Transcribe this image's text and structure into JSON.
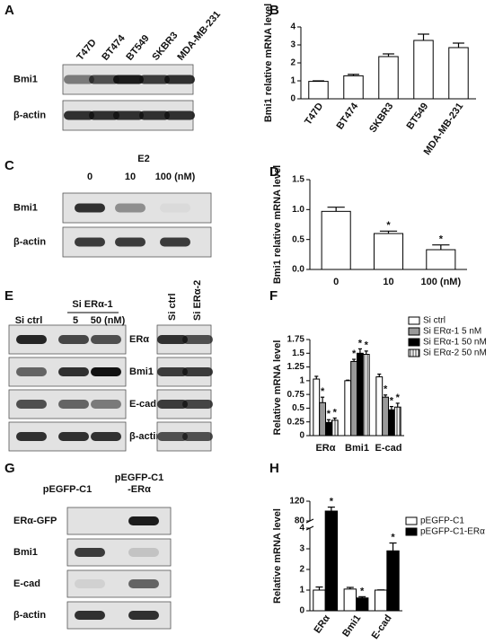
{
  "blots": [
    {
      "panel": "A",
      "lanes": [
        "T47D",
        "BT474",
        "BT549",
        "SKBR3",
        "MDA-MB-231"
      ],
      "rows": [
        "Bmi1",
        "β-actin"
      ]
    },
    {
      "panel": "C",
      "treatment": "E2",
      "lanes": [
        "0",
        "10",
        "100 (nM)"
      ],
      "rows": [
        "Bmi1",
        "β-actin"
      ]
    },
    {
      "panel": "E",
      "group": "Si ERα-1",
      "lanes": [
        "Si ctrl",
        "5",
        "50 (nM)"
      ],
      "lanes2": [
        "Si ctrl",
        "Si ERα-2"
      ],
      "rows": [
        "ERα",
        "Bmi1",
        "E-cad",
        "β-actin"
      ]
    },
    {
      "panel": "G",
      "lanes": [
        [
          "pEGFP-C1"
        ],
        [
          "pEGFP-C1",
          "-ERα"
        ]
      ],
      "rows": [
        "ERα-GFP",
        "Bmi1",
        "E-cad",
        "β-actin"
      ]
    }
  ],
  "chart_data": [
    {
      "type": "bar",
      "panel": "B",
      "y_label": "Bmi1 relative mRNA level",
      "categories": [
        "T47D",
        "BT474",
        "SKBR3",
        "BT549",
        "MDA-MB-231"
      ],
      "values": [
        0.97,
        1.28,
        2.35,
        3.25,
        2.85
      ],
      "errors": [
        0.03,
        0.08,
        0.15,
        0.35,
        0.25
      ],
      "color": "#ffffff",
      "ylim": [
        0,
        4
      ],
      "yticks": [
        0,
        1,
        2,
        3,
        4
      ]
    },
    {
      "type": "bar",
      "panel": "D",
      "y_label": "Bmi1 relative mRNA level",
      "categories": [
        "0",
        "10",
        "100 (nM)"
      ],
      "values": [
        0.97,
        0.6,
        0.33
      ],
      "errors": [
        0.07,
        0.04,
        0.08
      ],
      "stars": [
        null,
        "*",
        "*"
      ],
      "color": "#ffffff",
      "ylim": [
        0,
        1.5
      ],
      "yticks": [
        {
          "value": 0,
          "label": "0.0"
        },
        {
          "value": 0.5,
          "label": "0.5"
        },
        {
          "value": 1,
          "label": "1.0"
        },
        {
          "value": 1.5,
          "label": "1.5"
        }
      ]
    },
    {
      "type": "grouped-bar",
      "panel": "F",
      "y_label": "Relative mRNA level",
      "categories": [
        "ERα",
        "Bmi1",
        "E-cad"
      ],
      "series": [
        {
          "name": "Si ctrl",
          "color": "#ffffff",
          "values": [
            1.03,
            1.0,
            1.07
          ],
          "errors": [
            0.05,
            0.01,
            0.05
          ],
          "stars": [
            null,
            null,
            null
          ]
        },
        {
          "name": "Si ERα-1 5 nM",
          "color": "#999999",
          "values": [
            0.6,
            1.35,
            0.7
          ],
          "errors": [
            0.1,
            0.04,
            0.04
          ],
          "stars": [
            "*",
            "*",
            "*"
          ]
        },
        {
          "name": "Si ERα-1 50 nM",
          "color": "#000000",
          "values": [
            0.24,
            1.5,
            0.47
          ],
          "errors": [
            0.05,
            0.08,
            0.06
          ],
          "stars": [
            "*",
            "*",
            "*"
          ]
        },
        {
          "name": "Si ERα-2 50 nM",
          "color": "#ffffff",
          "hatch": true,
          "values": [
            0.28,
            1.48,
            0.52
          ],
          "errors": [
            0.04,
            0.06,
            0.07
          ],
          "stars": [
            "*",
            "*",
            "*"
          ]
        }
      ],
      "ylim": [
        0,
        1.75
      ],
      "yticks": [
        0,
        0.25,
        0.5,
        0.75,
        1,
        1.25,
        1.5,
        1.75
      ]
    },
    {
      "type": "grouped-bar",
      "panel": "H",
      "y_label": "Relative mRNA level",
      "categories": [
        "ERα",
        "Bmi1",
        "E-cad"
      ],
      "series": [
        {
          "name": "pEGFP-C1",
          "color": "#ffffff",
          "values": [
            1.0,
            1.05,
            1.0
          ],
          "errors": [
            0.15,
            0.08,
            0.01
          ],
          "stars": [
            null,
            null,
            null
          ]
        },
        {
          "name": "pEGFP-C1-ERα",
          "color": "#000000",
          "values": [
            100,
            0.62,
            2.9
          ],
          "errors": [
            8,
            0.06,
            0.38
          ],
          "stars": [
            "*",
            "*",
            "*"
          ]
        }
      ],
      "ylim": [
        0,
        120
      ],
      "axis_break": [
        4,
        80
      ],
      "yticks": [
        0,
        1,
        2,
        3,
        4,
        80,
        120
      ]
    }
  ]
}
